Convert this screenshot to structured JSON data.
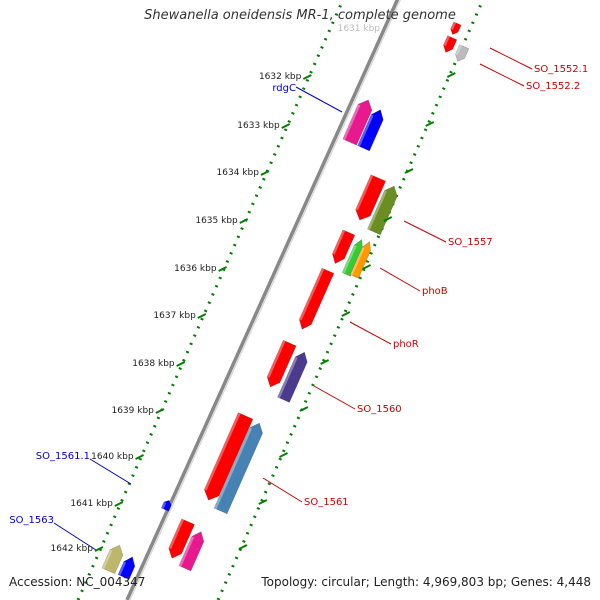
{
  "title": "Shewanella oneidensis MR-1, complete genome",
  "footer": {
    "accession": "Accession: NC_004347",
    "topology": "Topology: circular; Length: 4,969,803 bp; Genes: 4,448"
  },
  "top_clipped_tick": "1631 kbp",
  "ticks": [
    "1632 kbp",
    "1633 kbp",
    "1634 kbp",
    "1635 kbp",
    "1636 kbp",
    "1637 kbp",
    "1638 kbp",
    "1639 kbp",
    "1640 kbp",
    "1641 kbp",
    "1642 kbp"
  ],
  "forward_labels": [
    "rdgC",
    "SO_1561.1",
    "SO_1563"
  ],
  "reverse_labels": [
    "SO_1552.1",
    "SO_1552.2",
    "SO_1557",
    "phoB",
    "phoR",
    "SO_1560",
    "SO_1561"
  ],
  "colors": {
    "red": "#ff0000",
    "magenta": "#e8198f",
    "blue": "#0000ff",
    "olive": "#6b8e23",
    "green": "#33cc33",
    "orange": "#ff9900",
    "purple": "#4b3b8f",
    "steelblue": "#4682b4",
    "khaki": "#bdb76b",
    "gray": "#bbbbbb",
    "backbone": "#888888",
    "tick_mark": "#008000",
    "label_forward": "#0000cc",
    "label_reverse": "#cc0000"
  }
}
